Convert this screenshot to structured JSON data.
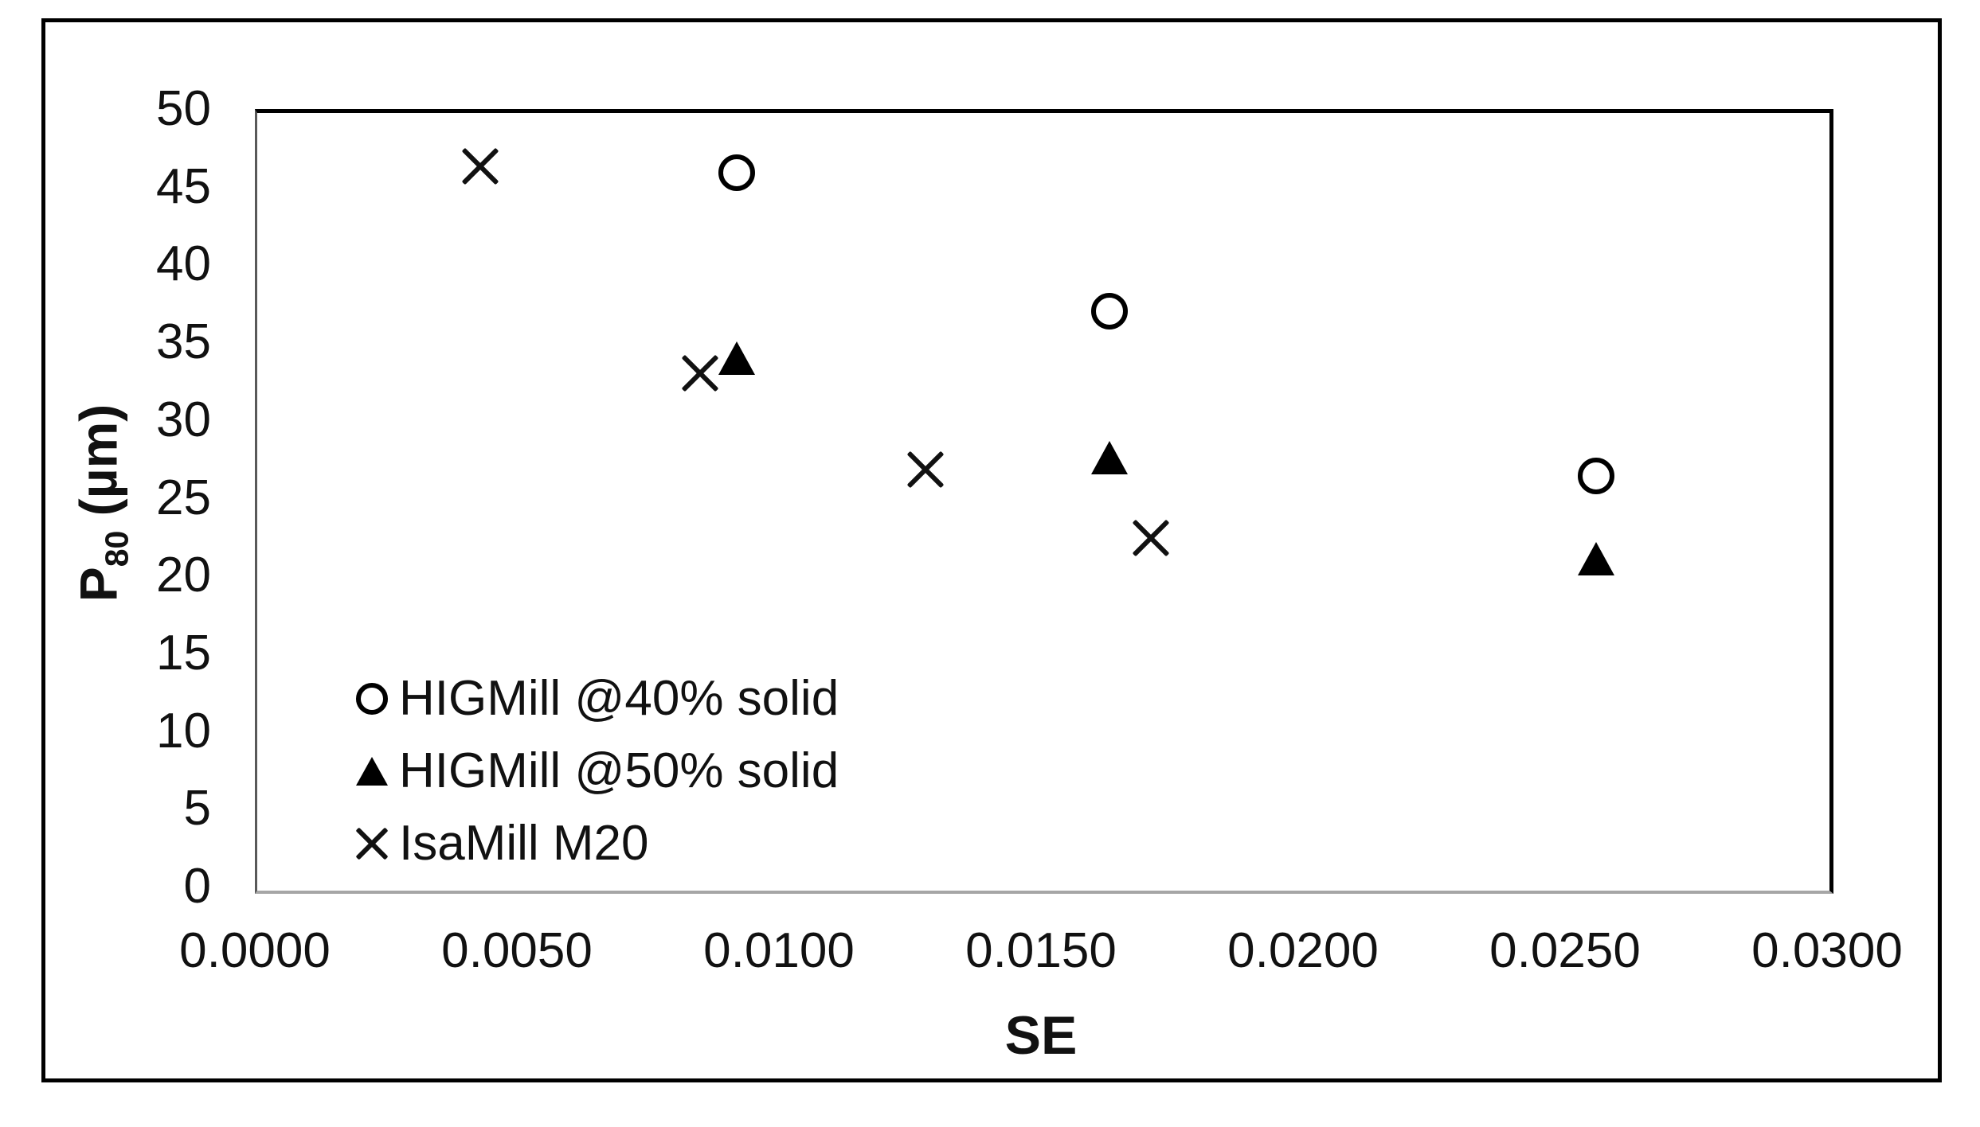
{
  "figure": {
    "background_color": "#ffffff",
    "frame_color": "#000000",
    "marker_color": "#000000",
    "axis_line_color_dark": "#595959",
    "axis_line_color_light": "#a6a6a6"
  },
  "chart_data": {
    "type": "scatter",
    "title": "",
    "xlabel": "SE",
    "ylabel": "P80 (µm)",
    "ylabel_parts": {
      "main": "P",
      "sub": "80",
      "unit": " (µm)"
    },
    "xlim": [
      0.0,
      0.03
    ],
    "ylim": [
      0,
      50
    ],
    "x_tick_labels": [
      "0.0000",
      "0.0050",
      "0.0100",
      "0.0150",
      "0.0200",
      "0.0250",
      "0.0300"
    ],
    "y_tick_labels": [
      "0",
      "5",
      "10",
      "15",
      "20",
      "25",
      "30",
      "35",
      "40",
      "45",
      "50"
    ],
    "grid": false,
    "legend_position": "inside-lower-left",
    "series": [
      {
        "name": "HIGMill @40% solid",
        "marker": "circle-open",
        "color": "#000000",
        "points": [
          {
            "x": 0.0092,
            "y": 45.9
          },
          {
            "x": 0.0163,
            "y": 37.0
          },
          {
            "x": 0.0256,
            "y": 26.4
          }
        ]
      },
      {
        "name": "HIGMill @50% solid",
        "marker": "triangle-filled",
        "color": "#000000",
        "points": [
          {
            "x": 0.0092,
            "y": 34.0
          },
          {
            "x": 0.0163,
            "y": 27.6
          },
          {
            "x": 0.0256,
            "y": 21.1
          }
        ]
      },
      {
        "name": "IsaMill M20",
        "marker": "x",
        "color": "#000000",
        "points": [
          {
            "x": 0.0043,
            "y": 46.3
          },
          {
            "x": 0.0085,
            "y": 33.0
          },
          {
            "x": 0.0128,
            "y": 26.8
          },
          {
            "x": 0.0171,
            "y": 22.4
          }
        ]
      }
    ]
  }
}
